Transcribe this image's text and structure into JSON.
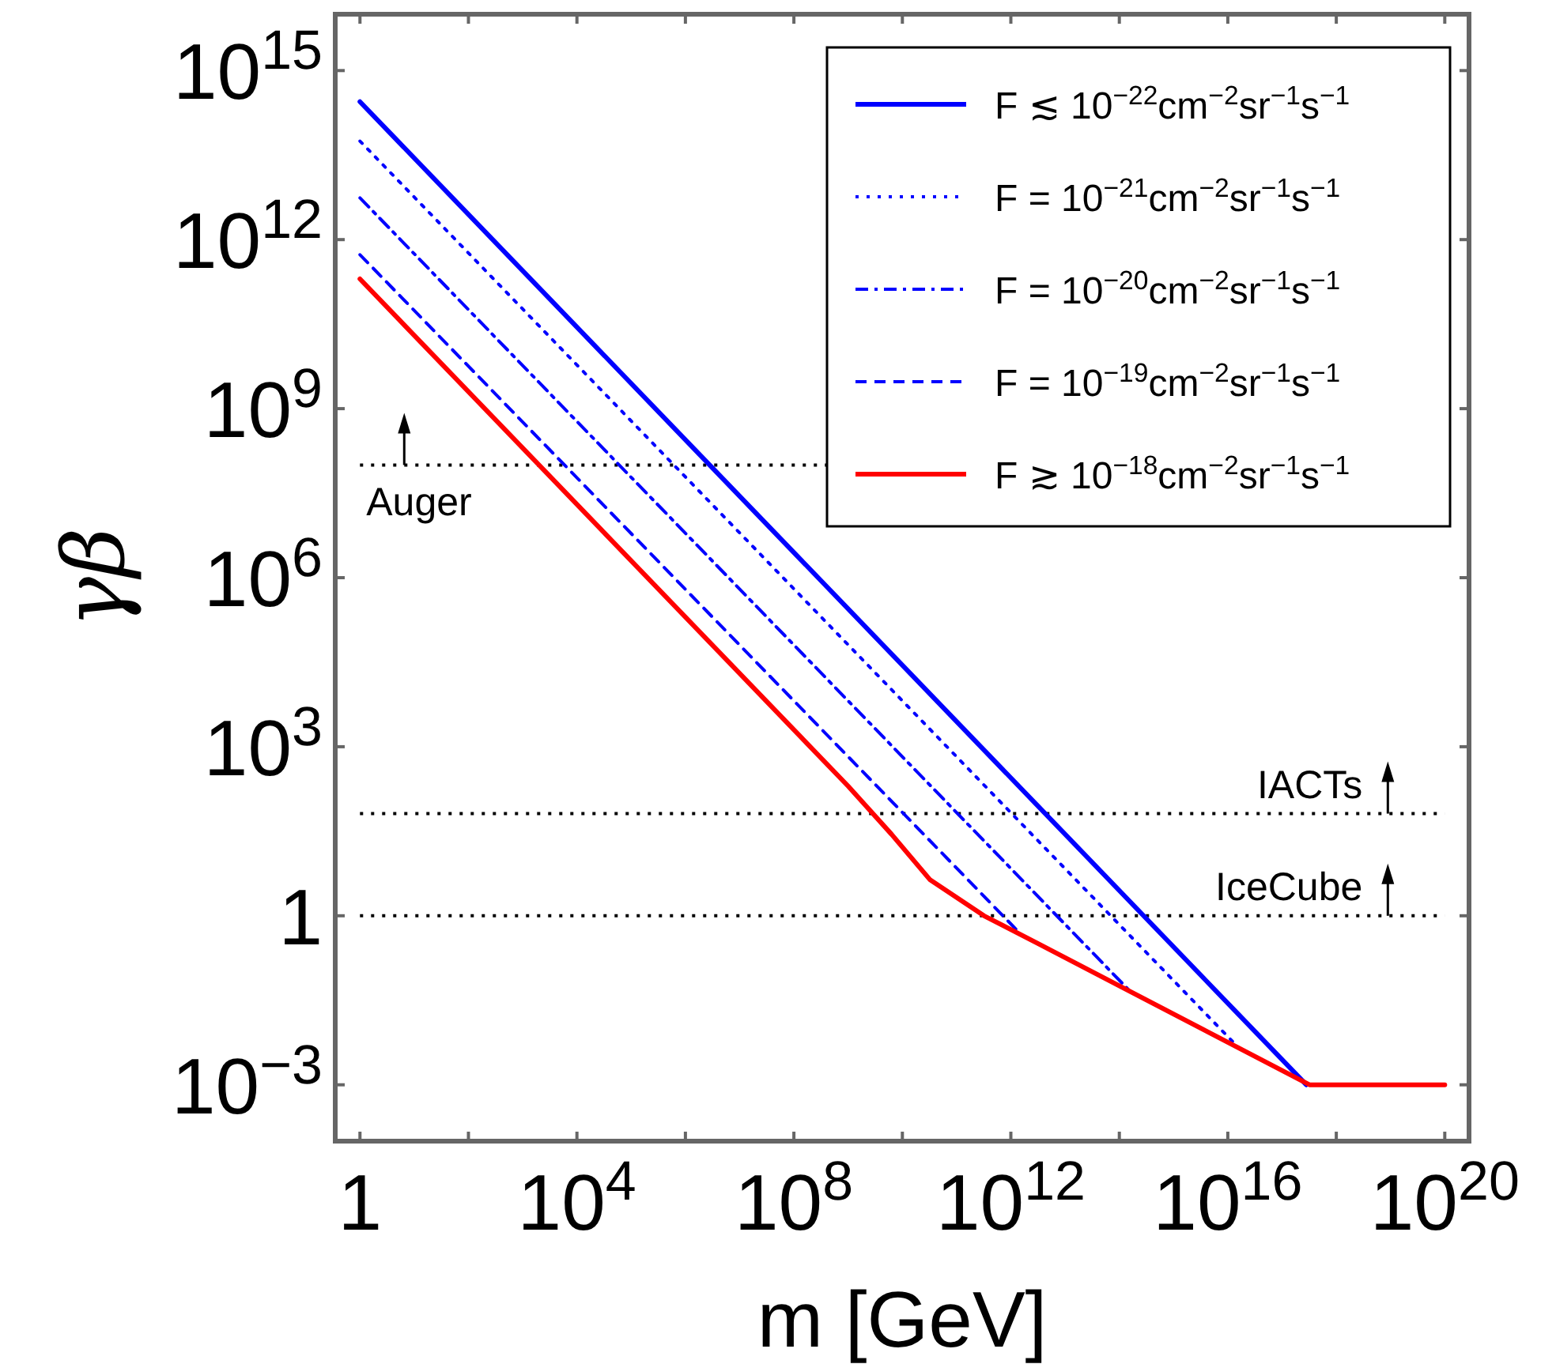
{
  "chart_data": {
    "type": "line",
    "xlabel": "m [GeV]",
    "ylabel": "γβ",
    "log": "xy",
    "xlim": [
      0.35,
      2.8e+20
    ],
    "ylim": [
      0.0001,
      1e+16
    ],
    "xticks": [
      1,
      {
        "value": 100,
        "label": null
      },
      {
        "value": 10000.0,
        "label": "10$^{4}$"
      },
      {
        "value": 1000000.0,
        "label": null
      },
      {
        "value": 100000000.0,
        "label": "10$^{8}$"
      },
      {
        "value": 10000000000.0,
        "label": null
      },
      {
        "value": 1000000000000.0,
        "label": "10$^{12}$"
      },
      {
        "value": 100000000000000.0,
        "label": null
      },
      {
        "value": 1e+16,
        "label": "10$^{16}$"
      },
      {
        "value": 1e+18,
        "label": null
      },
      {
        "value": 1e+20,
        "label": "10$^{20}$"
      }
    ],
    "yticks": [
      {
        "value": 0.001,
        "label": "10$^{−3}$"
      },
      1,
      {
        "value": 1000,
        "label": "10$^{3}$"
      },
      {
        "value": 1000000.0,
        "label": "10$^{6}$"
      },
      {
        "value": 1000000000.0,
        "label": "10$^{9}$"
      },
      {
        "value": 1000000000000.0,
        "label": "10$^{12}$"
      },
      {
        "value": 1000000000000000.0,
        "label": "10$^{15}$"
      }
    ],
    "grid": false,
    "legend": "top right",
    "marker": "none",
    "series": [
      {
        "name": "F ≲ 10$^{−22}$cm$^{−2}$sr$^{−1}$s$^{−1}$",
        "color": "#0000ff",
        "line_style": "solid",
        "x": [
          1,
          2.8e+17
        ],
        "values": [
          280000000000000.0,
          0.001
        ]
      },
      {
        "name": "F = 10$^{−21}$cm$^{−2}$sr$^{−1}$s$^{−1}$",
        "color": "#0000ff",
        "line_style": "dotted",
        "x": [
          1,
          1.6e+16
        ],
        "values": [
          56000000000000.0,
          0.0045
        ]
      },
      {
        "name": "F = 10$^{−20}$cm$^{−2}$sr$^{−1}$s$^{−1}$",
        "color": "#0000ff",
        "line_style": "dashdot",
        "x": [
          1,
          160000000000000.0
        ],
        "values": [
          5500000000000.0,
          0.045
        ]
      },
      {
        "name": "F = 10$^{−19}$cm$^{−2}$sr$^{−1}$s$^{−1}$",
        "color": "#0000ff",
        "line_style": "dashed",
        "x": [
          1,
          1600000000000.0
        ],
        "values": [
          540000000000.0,
          0.45
        ]
      },
      {
        "name": "F ≳ 10$^{−18}$cm$^{−2}$sr$^{−1}$s$^{−1}$",
        "color": "#ff0000",
        "line_style": "solid",
        "x": [
          1,
          1000000000.0,
          6300000000.0,
          32000000000.0,
          320000000000.0,
          3200000000000.0,
          3.2e+17,
          1e+20
        ],
        "values": [
          200000000000.0,
          200,
          28,
          4.4,
          1,
          0.32,
          0.001,
          0.001
        ]
      }
    ],
    "ref_lines": [
      {
        "axis": "y",
        "value": 100000000.0,
        "label": "Auger",
        "color": "#000000",
        "line_style": "dotted"
      },
      {
        "axis": "y",
        "value": 65,
        "label": "IACTs",
        "color": "#000000",
        "line_style": "dotted"
      },
      {
        "axis": "y",
        "value": 1,
        "label": "IceCube",
        "color": "#000000",
        "line_style": "dotted"
      }
    ]
  }
}
